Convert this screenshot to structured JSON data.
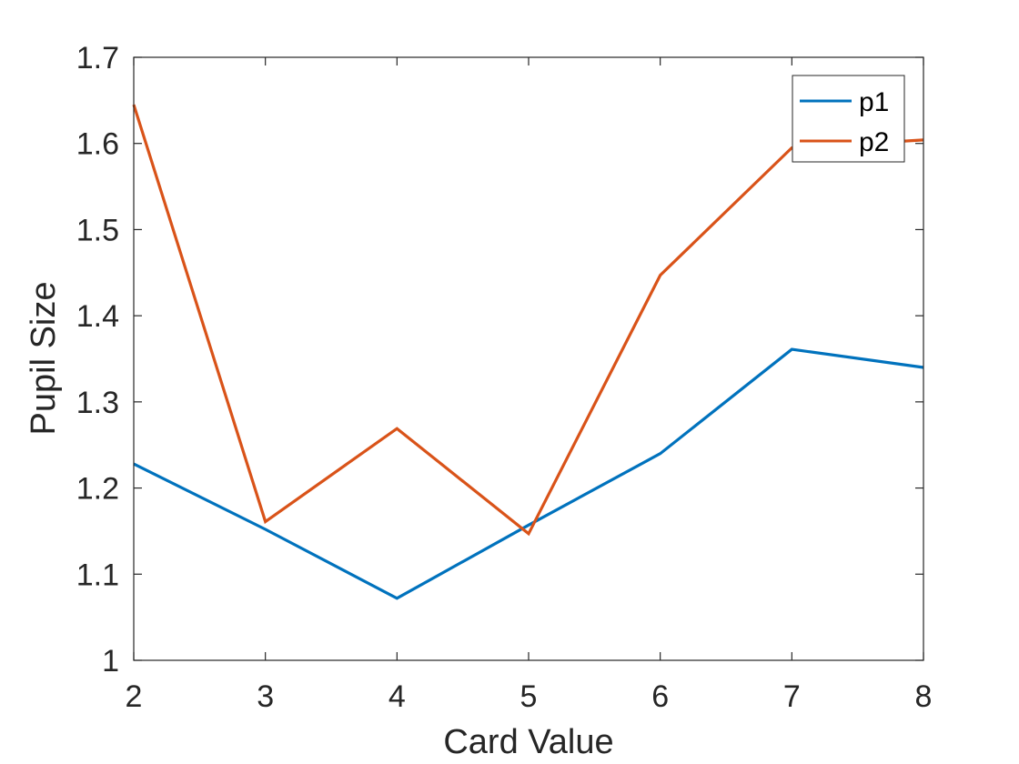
{
  "chart_data": {
    "type": "line",
    "title": "",
    "xlabel": "Card Value",
    "ylabel": "Pupil Size",
    "x": [
      2,
      3,
      4,
      5,
      6,
      7,
      8
    ],
    "xlim": [
      2,
      8
    ],
    "ylim": [
      1,
      1.7
    ],
    "xticks": [
      "2",
      "3",
      "4",
      "5",
      "6",
      "7",
      "8"
    ],
    "yticks": [
      "1",
      "1.1",
      "1.2",
      "1.3",
      "1.4",
      "1.5",
      "1.6",
      "1.7"
    ],
    "grid": false,
    "legend_position": "top-right",
    "series": [
      {
        "name": "p1",
        "color": "#0072BD",
        "values": [
          1.228,
          1.152,
          1.072,
          1.157,
          1.24,
          1.361,
          1.34
        ]
      },
      {
        "name": "p2",
        "color": "#D95319",
        "values": [
          1.645,
          1.161,
          1.269,
          1.147,
          1.447,
          1.595,
          1.604
        ]
      }
    ]
  }
}
